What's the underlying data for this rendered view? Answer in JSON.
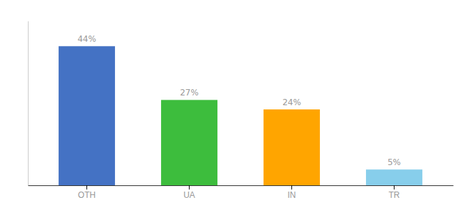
{
  "chart_data": {
    "type": "bar",
    "categories": [
      "OTH",
      "UA",
      "IN",
      "TR"
    ],
    "values": [
      44,
      27,
      24,
      5
    ],
    "value_labels": [
      "44%",
      "27%",
      "24%",
      "5%"
    ],
    "colors": [
      "#4472C4",
      "#3DBD3D",
      "#FFA500",
      "#87CEEB"
    ],
    "ylim": [
      0,
      52
    ],
    "data_labels": true,
    "tick_labels": "x",
    "grid": false
  }
}
